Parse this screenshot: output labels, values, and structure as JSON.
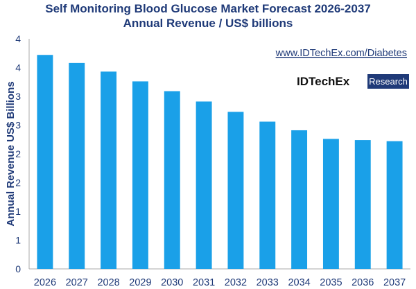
{
  "chart_data": {
    "type": "bar",
    "title": "Self Monitoring Blood Glucose Market Forecast 2026-2037",
    "subtitle": "Annual Revenue / US$ billions",
    "ylabel": "Annual Revenue US$ Billions",
    "xlabel": "",
    "categories": [
      "2026",
      "2027",
      "2028",
      "2029",
      "2030",
      "2031",
      "2032",
      "2033",
      "2034",
      "2035",
      "2036",
      "2037"
    ],
    "values": [
      3.72,
      3.58,
      3.43,
      3.26,
      3.09,
      2.91,
      2.73,
      2.56,
      2.41,
      2.26,
      2.24,
      2.22
    ],
    "ylim": [
      0,
      4
    ],
    "ytick_values": [
      0,
      0.5,
      1,
      1.5,
      2,
      2.5,
      3,
      3.5,
      4
    ],
    "ytick_labels": [
      "0",
      "1",
      "1",
      "2",
      "2",
      "3",
      "3",
      "4",
      "4"
    ],
    "bar_color": "#1aa0e8",
    "grid": false,
    "legend": "none"
  },
  "annotations": {
    "url": "www.IDTechEx.com/Diabetes",
    "brand_name": "IDTechEx",
    "brand_tag": "Research",
    "brand_tag_color": "#1f3a78"
  }
}
